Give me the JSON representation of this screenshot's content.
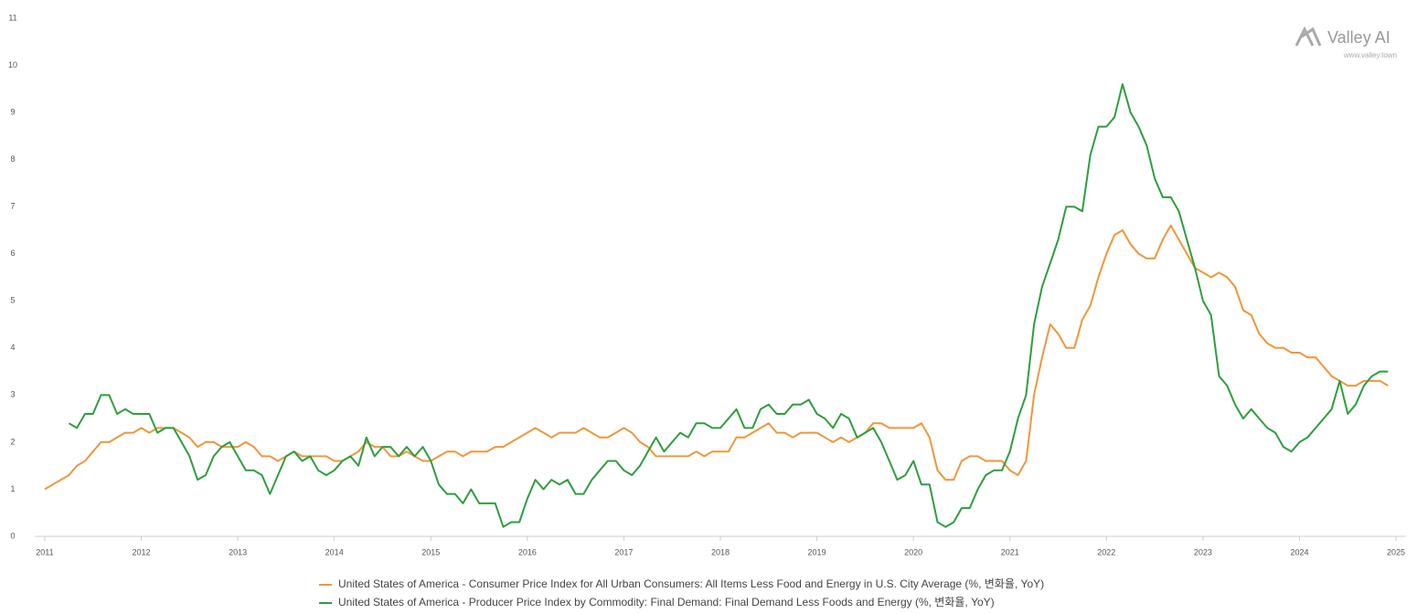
{
  "chart_data": {
    "type": "line",
    "x": [
      2011,
      2011.083,
      2011.167,
      2011.25,
      2011.333,
      2011.417,
      2011.5,
      2011.583,
      2011.667,
      2011.75,
      2011.833,
      2011.917,
      2012,
      2012.083,
      2012.167,
      2012.25,
      2012.333,
      2012.417,
      2012.5,
      2012.583,
      2012.667,
      2012.75,
      2012.833,
      2012.917,
      2013,
      2013.083,
      2013.167,
      2013.25,
      2013.333,
      2013.417,
      2013.5,
      2013.583,
      2013.667,
      2013.75,
      2013.833,
      2013.917,
      2014,
      2014.083,
      2014.167,
      2014.25,
      2014.333,
      2014.417,
      2014.5,
      2014.583,
      2014.667,
      2014.75,
      2014.833,
      2014.917,
      2015,
      2015.083,
      2015.167,
      2015.25,
      2015.333,
      2015.417,
      2015.5,
      2015.583,
      2015.667,
      2015.75,
      2015.833,
      2015.917,
      2016,
      2016.083,
      2016.167,
      2016.25,
      2016.333,
      2016.417,
      2016.5,
      2016.583,
      2016.667,
      2016.75,
      2016.833,
      2016.917,
      2017,
      2017.083,
      2017.167,
      2017.25,
      2017.333,
      2017.417,
      2017.5,
      2017.583,
      2017.667,
      2017.75,
      2017.833,
      2017.917,
      2018,
      2018.083,
      2018.167,
      2018.25,
      2018.333,
      2018.417,
      2018.5,
      2018.583,
      2018.667,
      2018.75,
      2018.833,
      2018.917,
      2019,
      2019.083,
      2019.167,
      2019.25,
      2019.333,
      2019.417,
      2019.5,
      2019.583,
      2019.667,
      2019.75,
      2019.833,
      2019.917,
      2020,
      2020.083,
      2020.167,
      2020.25,
      2020.333,
      2020.417,
      2020.5,
      2020.583,
      2020.667,
      2020.75,
      2020.833,
      2020.917,
      2021,
      2021.083,
      2021.167,
      2021.25,
      2021.333,
      2021.417,
      2021.5,
      2021.583,
      2021.667,
      2021.75,
      2021.833,
      2021.917,
      2022,
      2022.083,
      2022.167,
      2022.25,
      2022.333,
      2022.417,
      2022.5,
      2022.583,
      2022.667,
      2022.75,
      2022.833,
      2022.917,
      2023,
      2023.083,
      2023.167,
      2023.25,
      2023.333,
      2023.417,
      2023.5,
      2023.583,
      2023.667,
      2023.75,
      2023.833,
      2023.917,
      2024,
      2024.083,
      2024.167,
      2024.25,
      2024.333,
      2024.417,
      2024.5,
      2024.583,
      2024.667,
      2024.75,
      2024.833,
      2024.917
    ],
    "series": [
      {
        "name": "United States of America - Consumer Price Index for All Urban Consumers: All Items Less Food and Energy in U.S. City Average (%, 변화율, YoY)",
        "color": "#f0963c",
        "values": [
          1.0,
          1.1,
          1.2,
          1.3,
          1.5,
          1.6,
          1.8,
          2.0,
          2.0,
          2.1,
          2.2,
          2.2,
          2.3,
          2.2,
          2.3,
          2.3,
          2.3,
          2.2,
          2.1,
          1.9,
          2.0,
          2.0,
          1.9,
          1.9,
          1.9,
          2.0,
          1.9,
          1.7,
          1.7,
          1.6,
          1.7,
          1.8,
          1.7,
          1.7,
          1.7,
          1.7,
          1.6,
          1.6,
          1.7,
          1.8,
          2.0,
          1.9,
          1.9,
          1.7,
          1.7,
          1.8,
          1.7,
          1.6,
          1.6,
          1.7,
          1.8,
          1.8,
          1.7,
          1.8,
          1.8,
          1.8,
          1.9,
          1.9,
          2.0,
          2.1,
          2.2,
          2.3,
          2.2,
          2.1,
          2.2,
          2.2,
          2.2,
          2.3,
          2.2,
          2.1,
          2.1,
          2.2,
          2.3,
          2.2,
          2.0,
          1.9,
          1.7,
          1.7,
          1.7,
          1.7,
          1.7,
          1.8,
          1.7,
          1.8,
          1.8,
          1.8,
          2.1,
          2.1,
          2.2,
          2.3,
          2.4,
          2.2,
          2.2,
          2.1,
          2.2,
          2.2,
          2.2,
          2.1,
          2.0,
          2.1,
          2.0,
          2.1,
          2.2,
          2.4,
          2.4,
          2.3,
          2.3,
          2.3,
          2.3,
          2.4,
          2.1,
          1.4,
          1.2,
          1.2,
          1.6,
          1.7,
          1.7,
          1.6,
          1.6,
          1.6,
          1.4,
          1.3,
          1.6,
          3.0,
          3.8,
          4.5,
          4.3,
          4.0,
          4.0,
          4.6,
          4.9,
          5.5,
          6.0,
          6.4,
          6.5,
          6.2,
          6.0,
          5.9,
          5.9,
          6.3,
          6.6,
          6.3,
          6.0,
          5.7,
          5.6,
          5.5,
          5.6,
          5.5,
          5.3,
          4.8,
          4.7,
          4.3,
          4.1,
          4.0,
          4.0,
          3.9,
          3.9,
          3.8,
          3.8,
          3.6,
          3.4,
          3.3,
          3.2,
          3.2,
          3.3,
          3.3,
          3.3,
          3.2
        ]
      },
      {
        "name": "United States of America - Producer Price Index by Commodity: Final Demand: Final Demand Less Foods and Energy (%, 변화율, YoY)",
        "color": "#2e9e3e",
        "values": [
          null,
          null,
          null,
          2.4,
          2.3,
          2.6,
          2.6,
          3.0,
          3.0,
          2.6,
          2.7,
          2.6,
          2.6,
          2.6,
          2.2,
          2.3,
          2.3,
          2.0,
          1.7,
          1.2,
          1.3,
          1.7,
          1.9,
          2.0,
          1.7,
          1.4,
          1.4,
          1.3,
          0.9,
          1.3,
          1.7,
          1.8,
          1.6,
          1.7,
          1.4,
          1.3,
          1.4,
          1.6,
          1.7,
          1.5,
          2.1,
          1.7,
          1.9,
          1.9,
          1.7,
          1.9,
          1.7,
          1.9,
          1.6,
          1.1,
          0.9,
          0.9,
          0.7,
          1.0,
          0.7,
          0.7,
          0.7,
          0.2,
          0.3,
          0.3,
          0.8,
          1.2,
          1.0,
          1.2,
          1.1,
          1.2,
          0.9,
          0.9,
          1.2,
          1.4,
          1.6,
          1.6,
          1.4,
          1.3,
          1.5,
          1.8,
          2.1,
          1.8,
          2.0,
          2.2,
          2.1,
          2.4,
          2.4,
          2.3,
          2.3,
          2.5,
          2.7,
          2.3,
          2.3,
          2.7,
          2.8,
          2.6,
          2.6,
          2.8,
          2.8,
          2.9,
          2.6,
          2.5,
          2.3,
          2.6,
          2.5,
          2.1,
          2.2,
          2.3,
          2.0,
          1.6,
          1.2,
          1.3,
          1.6,
          1.1,
          1.1,
          0.3,
          0.2,
          0.3,
          0.6,
          0.6,
          1.0,
          1.3,
          1.4,
          1.4,
          1.8,
          2.5,
          3.0,
          4.5,
          5.3,
          5.8,
          6.3,
          7.0,
          7.0,
          6.9,
          8.1,
          8.7,
          8.7,
          8.9,
          9.6,
          9.0,
          8.7,
          8.3,
          7.6,
          7.2,
          7.2,
          6.9,
          6.3,
          5.7,
          5.0,
          4.7,
          3.4,
          3.2,
          2.8,
          2.5,
          2.7,
          2.5,
          2.3,
          2.2,
          1.9,
          1.8,
          2.0,
          2.1,
          2.3,
          2.5,
          2.7,
          3.3,
          2.6,
          2.8,
          3.2,
          3.4,
          3.5,
          3.5
        ]
      }
    ],
    "xlim": [
      2010.9,
      2025.1
    ],
    "xticks": [
      2011,
      2012,
      2013,
      2014,
      2015,
      2016,
      2017,
      2018,
      2019,
      2020,
      2021,
      2022,
      2023,
      2024,
      2025
    ],
    "ylim": [
      0,
      11
    ],
    "yticks": [
      0,
      1,
      2,
      3,
      4,
      5,
      6,
      7,
      8,
      9,
      10,
      11
    ],
    "grid": false,
    "legend": "bottom"
  },
  "watermark": {
    "title": "Valley AI",
    "url": "www.valley.town"
  }
}
